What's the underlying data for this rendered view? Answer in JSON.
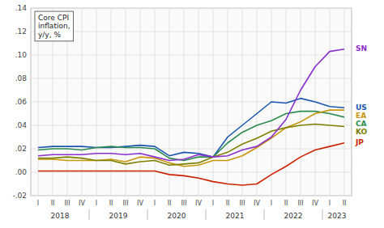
{
  "chart_data": {
    "type": "line",
    "title": "Core CPI\ninflation,\ny/y, %",
    "categories": [
      "I",
      "II",
      "III",
      "IV",
      "I",
      "II",
      "III",
      "IV",
      "I",
      "II",
      "III",
      "IV",
      "I",
      "II",
      "III",
      "IV",
      "I",
      "II",
      "III",
      "IV",
      "I",
      "II"
    ],
    "x_groups": [
      2018,
      2018,
      2018,
      2018,
      2019,
      2019,
      2019,
      2019,
      2020,
      2020,
      2020,
      2020,
      2021,
      2021,
      2021,
      2021,
      2022,
      2022,
      2022,
      2022,
      2023,
      2023
    ],
    "series": [
      {
        "name": "US",
        "color": "#1a56b0",
        "values": [
          0.021,
          0.022,
          0.022,
          0.022,
          0.021,
          0.021,
          0.022,
          0.023,
          0.022,
          0.014,
          0.017,
          0.016,
          0.013,
          0.03,
          0.04,
          0.05,
          0.06,
          0.059,
          0.063,
          0.06,
          0.056,
          0.055
        ]
      },
      {
        "name": "CA",
        "color": "#2e8b4e",
        "values": [
          0.019,
          0.02,
          0.02,
          0.019,
          0.021,
          0.022,
          0.021,
          0.021,
          0.02,
          0.012,
          0.01,
          0.013,
          0.013,
          0.025,
          0.034,
          0.04,
          0.044,
          0.05,
          0.052,
          0.052,
          0.05,
          0.047
        ]
      },
      {
        "name": "EA",
        "color": "#c8960c",
        "values": [
          0.011,
          0.011,
          0.01,
          0.01,
          0.01,
          0.011,
          0.009,
          0.013,
          0.012,
          0.008,
          0.005,
          0.006,
          0.01,
          0.01,
          0.014,
          0.021,
          0.029,
          0.038,
          0.043,
          0.05,
          0.053,
          0.053
        ]
      },
      {
        "name": "KO",
        "color": "#808000",
        "values": [
          0.012,
          0.012,
          0.013,
          0.012,
          0.01,
          0.01,
          0.007,
          0.009,
          0.01,
          0.006,
          0.007,
          0.008,
          0.013,
          0.017,
          0.024,
          0.029,
          0.035,
          0.038,
          0.04,
          0.041,
          0.04,
          0.039
        ]
      },
      {
        "name": "SN",
        "color": "#8b30cc",
        "values": [
          0.014,
          0.015,
          0.015,
          0.015,
          0.016,
          0.016,
          0.015,
          0.016,
          0.013,
          0.01,
          0.011,
          0.015,
          0.013,
          0.014,
          0.019,
          0.022,
          0.03,
          0.045,
          0.07,
          0.09,
          0.103,
          0.105
        ]
      },
      {
        "name": "JP",
        "color": "#cc2200",
        "values": [
          0.001,
          0.001,
          0.001,
          0.001,
          0.001,
          0.001,
          0.001,
          0.001,
          0.001,
          -0.002,
          -0.003,
          -0.005,
          -0.008,
          -0.01,
          -0.011,
          -0.01,
          -0.002,
          0.005,
          0.013,
          0.019,
          0.022,
          0.025
        ]
      }
    ],
    "ylim": [
      -0.02,
      0.14
    ],
    "yticks": [
      {
        "value": -0.02,
        "label": "-.02"
      },
      {
        "value": 0.0,
        "label": ".00"
      },
      {
        "value": 0.02,
        "label": ".02"
      },
      {
        "value": 0.04,
        "label": ".04"
      },
      {
        "value": 0.06,
        "label": ".06"
      },
      {
        "value": 0.08,
        "label": ".08"
      },
      {
        "value": 0.1,
        "label": ".10"
      },
      {
        "value": 0.12,
        "label": ".12"
      },
      {
        "value": 0.14,
        "label": ".14"
      }
    ],
    "grid": true
  }
}
